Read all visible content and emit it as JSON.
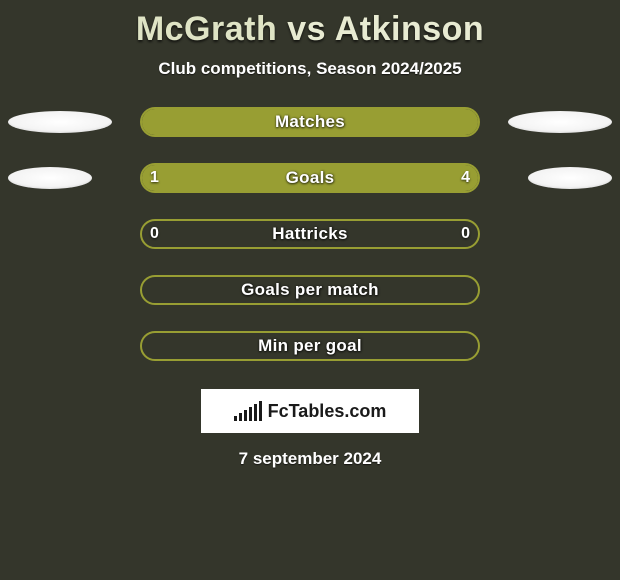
{
  "background_color": "#34362b",
  "title": {
    "left": "McGrath",
    "vs": "vs",
    "right": "Atkinson",
    "color_left": "#dfe4c5",
    "color_vs": "#e8ebd2",
    "color_right": "#e8ebd2",
    "fontsize": 34
  },
  "subtitle": "Club competitions, Season 2024/2025",
  "date": "7 september 2024",
  "accent_color": "#989e33",
  "bar_border_color": "#989e33",
  "bar_background_color": "#34362b",
  "ellipse_color": "#ffffff",
  "rows": [
    {
      "label": "Matches",
      "left_value": "",
      "right_value": "",
      "left_fill_pct": 100,
      "right_fill_pct": 0,
      "fill_left_color": "#989e33",
      "fill_right_color": "#989e33",
      "left_ellipse_w": 104,
      "right_ellipse_w": 104
    },
    {
      "label": "Goals",
      "left_value": "1",
      "right_value": "4",
      "left_fill_pct": 20,
      "right_fill_pct": 80,
      "fill_left_color": "#989e33",
      "fill_right_color": "#989e33",
      "left_ellipse_w": 84,
      "right_ellipse_w": 84
    },
    {
      "label": "Hattricks",
      "left_value": "0",
      "right_value": "0",
      "left_fill_pct": 0,
      "right_fill_pct": 0,
      "fill_left_color": "#989e33",
      "fill_right_color": "#989e33",
      "left_ellipse_w": 0,
      "right_ellipse_w": 0
    },
    {
      "label": "Goals per match",
      "left_value": "",
      "right_value": "",
      "left_fill_pct": 0,
      "right_fill_pct": 0,
      "fill_left_color": "#989e33",
      "fill_right_color": "#989e33",
      "left_ellipse_w": 0,
      "right_ellipse_w": 0
    },
    {
      "label": "Min per goal",
      "left_value": "",
      "right_value": "",
      "left_fill_pct": 0,
      "right_fill_pct": 0,
      "fill_left_color": "#989e33",
      "fill_right_color": "#989e33",
      "left_ellipse_w": 0,
      "right_ellipse_w": 0
    }
  ],
  "logo": {
    "text": "FcTables.com",
    "bar_heights": [
      5,
      8,
      11,
      14,
      17,
      20
    ]
  }
}
